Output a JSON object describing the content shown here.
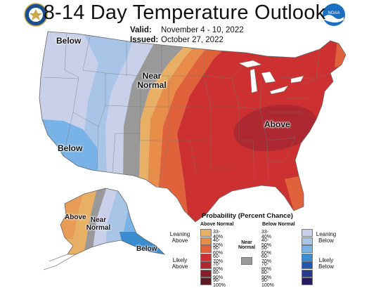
{
  "header": {
    "title": "8-14 Day Temperature Outlook",
    "valid_label": "Valid:",
    "valid_value": "November 4 - 10, 2022",
    "issued_label": "Issued:",
    "issued_value": "October 27, 2022"
  },
  "logos": {
    "left": "Department of Commerce seal",
    "right_text": "NOAA",
    "left_color": "#1a4f8f",
    "right_color": "#1a6fc0"
  },
  "map_labels": {
    "northwest": "Below",
    "southwest": "Below",
    "central": "Near Normal",
    "east": "Above",
    "alaska_above": "Above",
    "alaska_near": "Near Normal",
    "alaska_below": "Below"
  },
  "legend": {
    "title": "Probability (Percent Chance)",
    "above_header": "Above Normal",
    "below_header": "Below Normal",
    "near_header": "Near Normal",
    "leaning_above": "Leaning Above",
    "likely_above": "Likely Above",
    "leaning_below": "Leaning Below",
    "likely_below": "Likely Below",
    "near_color": "#999999",
    "above": [
      {
        "range": "33-40%",
        "color": "#e8b064"
      },
      {
        "range": "40-50%",
        "color": "#e88c4a"
      },
      {
        "range": "50-60%",
        "color": "#e0623a"
      },
      {
        "range": "60-70%",
        "color": "#cd3030"
      },
      {
        "range": "70-80%",
        "color": "#ad2830"
      },
      {
        "range": "80-90%",
        "color": "#82202c"
      },
      {
        "range": "90-100%",
        "color": "#5a1a24"
      }
    ],
    "below": [
      {
        "range": "33-40%",
        "color": "#c8d0ea"
      },
      {
        "range": "40-50%",
        "color": "#a8c4e6"
      },
      {
        "range": "50-60%",
        "color": "#78b2e6"
      },
      {
        "range": "60-70%",
        "color": "#3a8cd0"
      },
      {
        "range": "70-80%",
        "color": "#1f58b0"
      },
      {
        "range": "80-90%",
        "color": "#273a8a"
      },
      {
        "range": "90-100%",
        "color": "#261a60"
      }
    ]
  }
}
